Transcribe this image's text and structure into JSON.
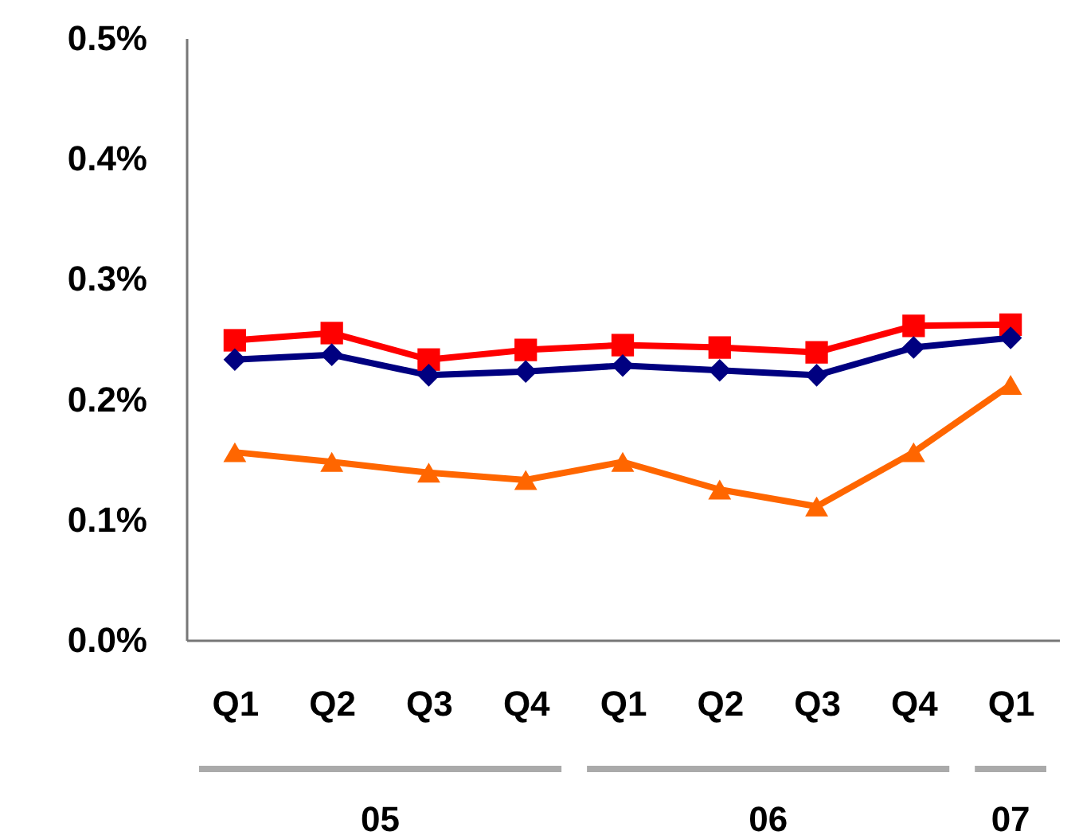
{
  "chart_data": {
    "type": "line",
    "categories": [
      "Q1",
      "Q2",
      "Q3",
      "Q4",
      "Q1",
      "Q2",
      "Q3",
      "Q4",
      "Q1"
    ],
    "series": [
      {
        "color": "#ff0000",
        "marker": "square",
        "values": [
          0.249,
          0.255,
          0.233,
          0.241,
          0.245,
          0.243,
          0.239,
          0.261,
          0.262
        ]
      },
      {
        "color": "#000080",
        "marker": "diamond",
        "values": [
          0.233,
          0.237,
          0.22,
          0.223,
          0.228,
          0.224,
          0.22,
          0.243,
          0.251
        ]
      },
      {
        "color": "#ff6600",
        "marker": "triangle",
        "values": [
          0.156,
          0.148,
          0.139,
          0.133,
          0.148,
          0.125,
          0.111,
          0.156,
          0.212
        ]
      }
    ],
    "ylim": [
      0,
      0.5
    ],
    "yticks": [
      {
        "value": 0,
        "label": "0.0%"
      },
      {
        "value": 0.1,
        "label": "0.1%"
      },
      {
        "value": 0.2,
        "label": "0.2%"
      },
      {
        "value": 0.3,
        "label": "0.3%"
      },
      {
        "value": 0.4,
        "label": "0.4%"
      },
      {
        "value": 0.5,
        "label": "0.5%"
      }
    ],
    "annotations": [
      "05",
      "06",
      "07"
    ],
    "grid": false,
    "legend": false
  }
}
